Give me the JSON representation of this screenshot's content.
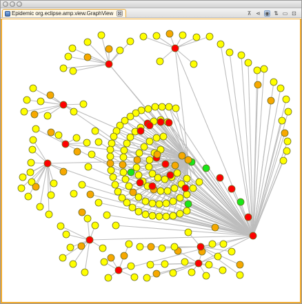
{
  "window": {
    "title": "Epidemic org.eclipse.amp.view.GraphView"
  },
  "tab": {
    "label": "Epidemic org.eclipse.amp.view.GraphView",
    "close": "⊠"
  },
  "toolbar": [
    {
      "name": "layout-tree-icon",
      "glyph": "⊼"
    },
    {
      "name": "layout-radial-icon",
      "glyph": "⋖"
    },
    {
      "name": "layout-spring-icon",
      "glyph": "◉"
    },
    {
      "name": "sync-icon",
      "glyph": "⇅"
    },
    {
      "name": "minimize-icon",
      "glyph": "▭"
    },
    {
      "name": "maximize-icon",
      "glyph": "⊡"
    }
  ],
  "legend_colors": {
    "healthy": "#ffff00",
    "exposed": "#ffd000",
    "recovering": "#f7a800",
    "infected": "#ff0000",
    "immune": "#19e619"
  }
}
